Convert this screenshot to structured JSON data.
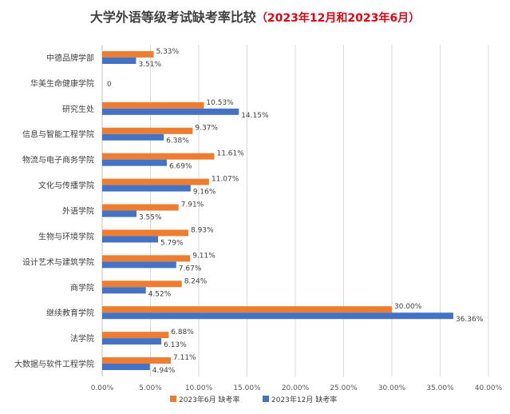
{
  "chart_data": {
    "type": "bar",
    "orientation": "horizontal",
    "title": "大学外语等级考试缺考率比较",
    "subtitle": "（2023年12月和2023年6月）",
    "categories": [
      "中德品牌学部",
      "华美生命健康学院",
      "研究生处",
      "信息与智能工程学院",
      "物流与电子商务学院",
      "文化与传播学院",
      "外语学院",
      "生物与环境学院",
      "设计艺术与建筑学院",
      "商学院",
      "继续教育学院",
      "法学院",
      "大数据与软件工程学院"
    ],
    "series": [
      {
        "name": "2023年6月 缺考率",
        "color": "#ed7d31",
        "values": [
          5.33,
          0,
          10.53,
          9.37,
          11.61,
          11.07,
          7.91,
          8.93,
          9.11,
          8.24,
          30.0,
          6.88,
          7.11
        ],
        "labels": [
          "5.33%",
          "0",
          "10.53%",
          "9.37%",
          "11.61%",
          "11.07%",
          "7.91%",
          "8.93%",
          "9.11%",
          "8.24%",
          "30.00%",
          "6.88%",
          "7.11%"
        ]
      },
      {
        "name": "2023年12月 缺考率",
        "color": "#4472c4",
        "values": [
          3.51,
          0,
          14.15,
          6.38,
          6.69,
          9.16,
          3.55,
          5.79,
          7.67,
          4.52,
          36.36,
          6.13,
          4.94
        ],
        "labels": [
          "3.51%",
          "",
          "14.15%",
          "6.38%",
          "6.69%",
          "9.16%",
          "3.55%",
          "5.79%",
          "7.67%",
          "4.52%",
          "36.36%",
          "6.13%",
          "4.94%"
        ]
      }
    ],
    "xlim": [
      0,
      40
    ],
    "xticks": [
      "0.00%",
      "5.00%",
      "10.00%",
      "15.00%",
      "20.00%",
      "25.00%",
      "30.00%",
      "35.00%",
      "40.00%"
    ],
    "grid": true,
    "legend_position": "bottom"
  }
}
